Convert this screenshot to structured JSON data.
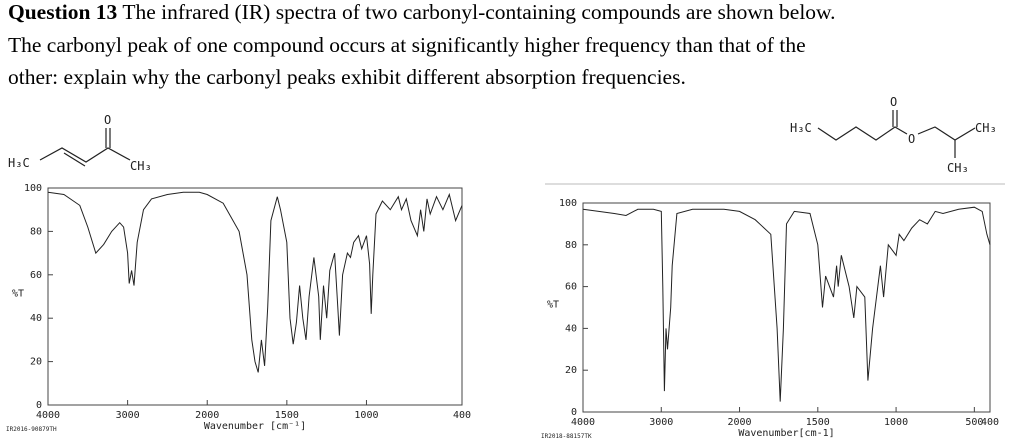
{
  "question": {
    "label": "Question 13",
    "lines": [
      "The infrared (IR) spectra of two carbonyl-containing compounds are shown below.",
      "The carbonyl peak of one compound occurs at significantly higher frequency than that of the",
      "other: explain why the carbonyl peaks exhibit different absorption frequencies."
    ]
  },
  "chart_data": [
    {
      "type": "line",
      "structure": [
        "H₃C",
        "CH₃",
        "O"
      ],
      "xlabel": "Wavenumber [cm⁻¹]",
      "ylabel": "%T",
      "footer": "IR2016-90879TH",
      "xlim": [
        4000,
        400
      ],
      "xticks": [
        4000,
        3000,
        2000,
        1500,
        1000,
        400
      ],
      "ylim": [
        0,
        100
      ],
      "yticks": [
        0,
        20,
        40,
        60,
        80,
        100
      ],
      "x": [
        4000,
        3800,
        3600,
        3500,
        3400,
        3300,
        3200,
        3100,
        3050,
        3000,
        2980,
        2950,
        2920,
        2880,
        2800,
        2700,
        2500,
        2300,
        2100,
        2000,
        1900,
        1800,
        1750,
        1720,
        1700,
        1680,
        1660,
        1640,
        1620,
        1600,
        1560,
        1540,
        1500,
        1480,
        1460,
        1440,
        1420,
        1400,
        1380,
        1360,
        1330,
        1300,
        1290,
        1270,
        1250,
        1230,
        1200,
        1180,
        1170,
        1150,
        1120,
        1100,
        1080,
        1050,
        1030,
        1000,
        980,
        970,
        960,
        940,
        900,
        850,
        800,
        780,
        750,
        720,
        680,
        660,
        640,
        620,
        600,
        560,
        520,
        480,
        440,
        400
      ],
      "series": [
        {
          "color": "#222222",
          "values": [
            98,
            97,
            92,
            82,
            70,
            74,
            80,
            84,
            82,
            70,
            56,
            62,
            55,
            75,
            90,
            95,
            97,
            98,
            98,
            97,
            93,
            80,
            60,
            30,
            20,
            15,
            30,
            18,
            45,
            85,
            96,
            90,
            75,
            40,
            28,
            38,
            55,
            40,
            30,
            50,
            68,
            50,
            30,
            55,
            40,
            62,
            70,
            45,
            32,
            60,
            70,
            68,
            75,
            78,
            72,
            78,
            65,
            42,
            60,
            88,
            94,
            90,
            96,
            90,
            95,
            85,
            78,
            90,
            80,
            95,
            88,
            96,
            90,
            97,
            85,
            92
          ]
        }
      ]
    },
    {
      "type": "line",
      "structure": [
        "H₃C",
        "CH₃",
        "O",
        "O",
        "CH₃"
      ],
      "xlabel": "Wavenumber[cm-1]",
      "ylabel": "%T",
      "footer": "IR2018-88157TK",
      "xlim": [
        4000,
        400
      ],
      "xticks": [
        4000,
        3000,
        2000,
        1500,
        1000,
        500,
        400
      ],
      "ylim": [
        0,
        100
      ],
      "yticks": [
        0,
        20,
        40,
        60,
        80,
        100
      ],
      "x": [
        4000,
        3800,
        3600,
        3450,
        3300,
        3100,
        3000,
        2980,
        2960,
        2940,
        2920,
        2880,
        2860,
        2800,
        2600,
        2400,
        2200,
        2000,
        1900,
        1800,
        1760,
        1740,
        1720,
        1700,
        1650,
        1550,
        1500,
        1470,
        1450,
        1400,
        1380,
        1370,
        1350,
        1300,
        1270,
        1250,
        1200,
        1180,
        1150,
        1100,
        1080,
        1050,
        1000,
        980,
        950,
        900,
        850,
        800,
        750,
        700,
        600,
        500,
        450,
        420,
        400
      ],
      "series": [
        {
          "color": "#222222",
          "values": [
            97,
            96,
            95,
            94,
            97,
            97,
            96,
            60,
            10,
            40,
            30,
            50,
            70,
            95,
            97,
            97,
            97,
            96,
            92,
            85,
            40,
            5,
            40,
            90,
            96,
            95,
            80,
            50,
            65,
            55,
            70,
            60,
            75,
            60,
            45,
            60,
            55,
            15,
            40,
            70,
            55,
            80,
            75,
            85,
            82,
            88,
            92,
            90,
            96,
            95,
            97,
            98,
            96,
            85,
            80
          ]
        }
      ]
    }
  ]
}
